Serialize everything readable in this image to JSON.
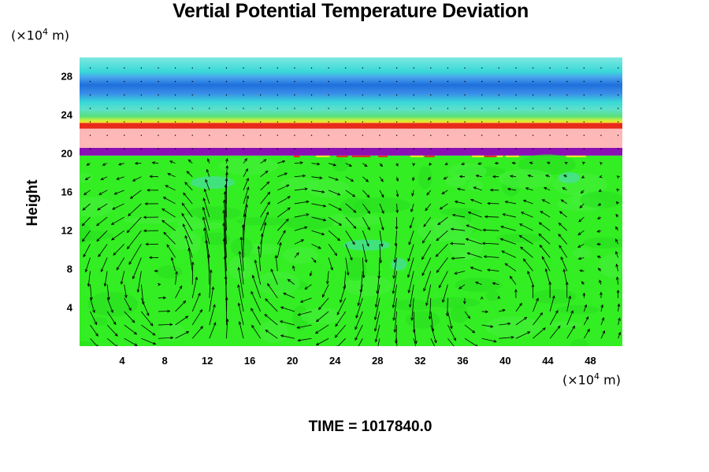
{
  "title": "Vertial Potential Temperature Deviation",
  "y_unit": {
    "prefix": "(×10",
    "exp": "4",
    "suffix": " m)"
  },
  "x_unit": {
    "prefix": "(×10",
    "exp": "4",
    "suffix": " m)"
  },
  "ylabel": "Height",
  "time_label": "TIME = 1017840.0",
  "colors": {
    "field_background": "#33ee22",
    "upper_layer": "#40c8f0",
    "upper_band_dark": "#1f6fdc",
    "upper_band_light": "#38d8d8",
    "red_edge": "#e82a1a",
    "pink_layer": "#ffb8b8",
    "purple_band": "#8a0fb4",
    "cyan_patch": "#4cd8c8",
    "arrow": "#000000"
  },
  "chart_data": {
    "type": "heatmap",
    "title": "Vertial Potential Temperature Deviation",
    "xlabel": "",
    "ylabel": "Height",
    "x_unit": "×10^4 m",
    "y_unit": "×10^4 m",
    "xlim": [
      0,
      51
    ],
    "ylim": [
      0,
      30
    ],
    "x_ticks": [
      4,
      8,
      12,
      16,
      20,
      24,
      28,
      32,
      36,
      40,
      44,
      48
    ],
    "y_ticks": [
      4,
      8,
      12,
      16,
      20,
      24,
      28
    ],
    "grid": false,
    "legend": "none",
    "overlay": "wind vectors",
    "layers": [
      {
        "name": "lower troposphere",
        "y_from": 0,
        "y_to": 19.8,
        "color": "#33ee22"
      },
      {
        "name": "purple band",
        "y_from": 19.8,
        "y_to": 20.6,
        "color": "#8a0fb4"
      },
      {
        "name": "pink layer",
        "y_from": 20.6,
        "y_to": 22.6,
        "color": "#ffb8b8"
      },
      {
        "name": "red edge",
        "y_from": 22.6,
        "y_to": 23.2,
        "color": "#e82a1a"
      },
      {
        "name": "upper layer",
        "y_from": 23.2,
        "y_to": 30,
        "color": "#40c8f0"
      }
    ],
    "time": "1017840.0"
  }
}
